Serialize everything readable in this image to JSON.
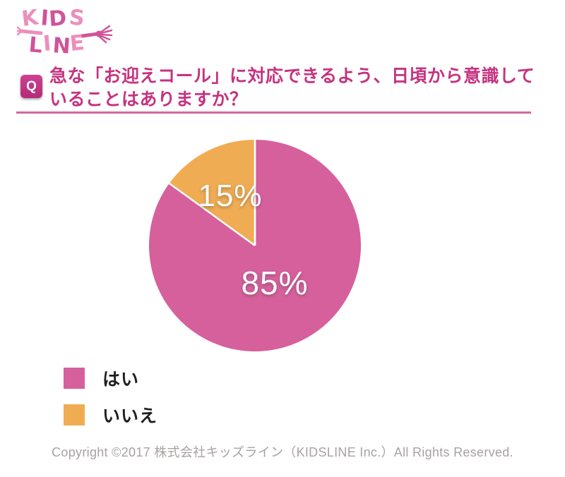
{
  "logo": {
    "line1": "KIDS",
    "line2": "LINE",
    "color_light": "#ec8fbc",
    "color_dark": "#d0549a"
  },
  "question": {
    "badge": "Q",
    "line1": "急な「お迎えコール」に対応できるよう、日頃から意識して",
    "line2": "いることはありますか？",
    "text_color": "#c5337f",
    "underline_color": "#d5679e"
  },
  "chart_data": {
    "type": "pie",
    "title": "急な「お迎えコール」に対応できるよう、日頃から意識していることはありますか？",
    "categories": [
      "はい",
      "いいえ"
    ],
    "values": [
      85,
      15
    ],
    "labels": [
      "85%",
      "15%"
    ],
    "colors": [
      "#d6609c",
      "#f0ac52"
    ],
    "start_angle_deg": 0,
    "direction": "clockwise",
    "separator_color": "#ffffff",
    "label_color": "#ffffff",
    "legend_position": "bottom-left"
  },
  "footer": {
    "copyright": "Copyright ©2017 株式会社キッズライン（KIDSLINE Inc.）All Rights Reserved."
  }
}
